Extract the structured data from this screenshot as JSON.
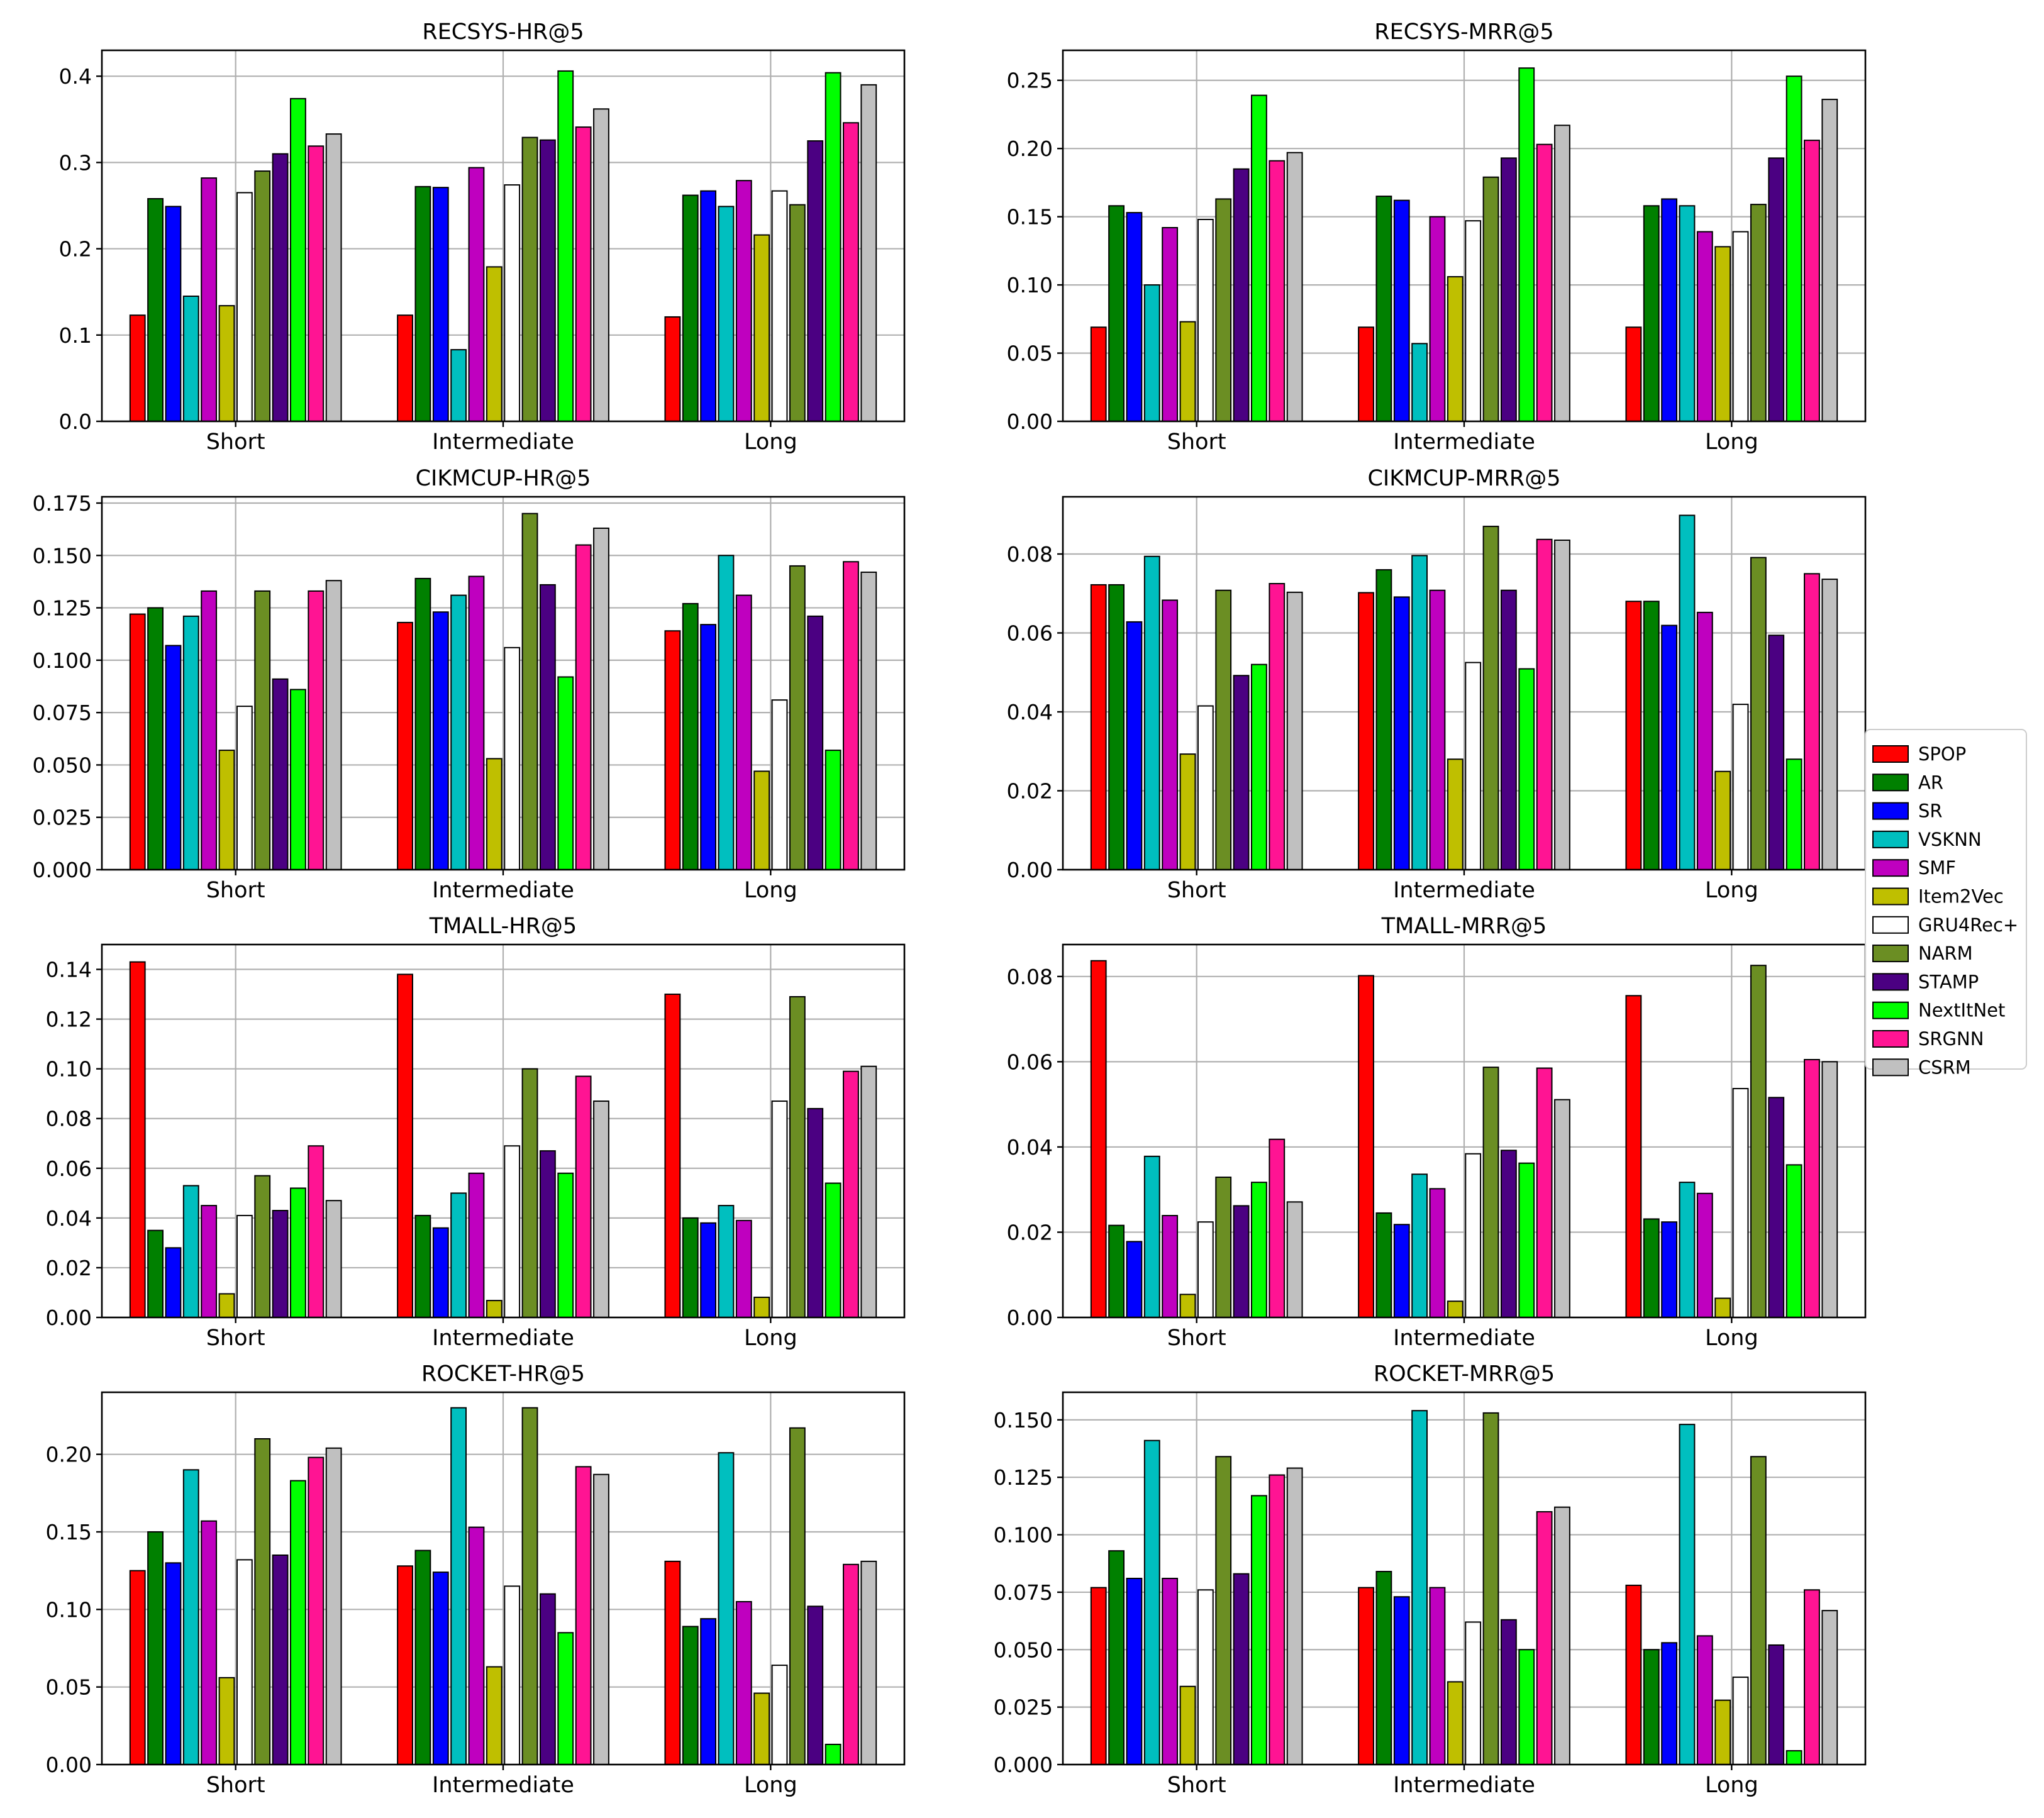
{
  "series": [
    {
      "name": "SPOP",
      "color": "#ff0000"
    },
    {
      "name": "AR",
      "color": "#008000"
    },
    {
      "name": "SR",
      "color": "#0000ff"
    },
    {
      "name": "VSKNN",
      "color": "#00bfbf"
    },
    {
      "name": "SMF",
      "color": "#bf00bf"
    },
    {
      "name": "Item2Vec",
      "color": "#bfbf00"
    },
    {
      "name": "GRU4Rec+",
      "color": "#ffffff"
    },
    {
      "name": "NARM",
      "color": "#6b8e23"
    },
    {
      "name": "STAMP",
      "color": "#4b0082"
    },
    {
      "name": "NextItNet",
      "color": "#00ff00"
    },
    {
      "name": "SRGNN",
      "color": "#ff1493"
    },
    {
      "name": "CSRM",
      "color": "#c0c0c0"
    }
  ],
  "legend": {
    "placement": "center-right",
    "labels": [
      "SPOP",
      "AR",
      "SR",
      "VSKNN",
      "SMF",
      "Item2Vec",
      "GRU4Rec+",
      "NARM",
      "STAMP",
      "NextItNet",
      "SRGNN",
      "CSRM"
    ]
  },
  "chart_data": [
    {
      "type": "bar",
      "title": "RECSYS-HR@5",
      "xlabel": "",
      "ylabel": "",
      "grid": true,
      "categories": [
        "Short",
        "Intermediate",
        "Long"
      ],
      "ylim": [
        0,
        0.43
      ],
      "yticks": [
        0.0,
        0.1,
        0.2,
        0.3,
        0.4
      ],
      "ytick_labels": [
        "0.0",
        "0.1",
        "0.2",
        "0.3",
        "0.4"
      ],
      "series": [
        {
          "name": "SPOP",
          "values": [
            0.123,
            0.123,
            0.121
          ]
        },
        {
          "name": "AR",
          "values": [
            0.258,
            0.272,
            0.262
          ]
        },
        {
          "name": "SR",
          "values": [
            0.249,
            0.271,
            0.267
          ]
        },
        {
          "name": "VSKNN",
          "values": [
            0.145,
            0.083,
            0.249
          ]
        },
        {
          "name": "SMF",
          "values": [
            0.282,
            0.294,
            0.279
          ]
        },
        {
          "name": "Item2Vec",
          "values": [
            0.134,
            0.179,
            0.216
          ]
        },
        {
          "name": "GRU4Rec+",
          "values": [
            0.265,
            0.274,
            0.267
          ]
        },
        {
          "name": "NARM",
          "values": [
            0.29,
            0.329,
            0.251
          ]
        },
        {
          "name": "STAMP",
          "values": [
            0.31,
            0.326,
            0.325
          ]
        },
        {
          "name": "NextItNet",
          "values": [
            0.374,
            0.406,
            0.404
          ]
        },
        {
          "name": "SRGNN",
          "values": [
            0.319,
            0.341,
            0.346
          ]
        },
        {
          "name": "CSRM",
          "values": [
            0.333,
            0.362,
            0.39
          ]
        }
      ]
    },
    {
      "type": "bar",
      "title": "RECSYS-MRR@5",
      "xlabel": "",
      "ylabel": "",
      "grid": true,
      "categories": [
        "Short",
        "Intermediate",
        "Long"
      ],
      "ylim": [
        0,
        0.272
      ],
      "yticks": [
        0.0,
        0.05,
        0.1,
        0.15,
        0.2,
        0.25
      ],
      "ytick_labels": [
        "0.00",
        "0.05",
        "0.10",
        "0.15",
        "0.20",
        "0.25"
      ],
      "series": [
        {
          "name": "SPOP",
          "values": [
            0.069,
            0.069,
            0.069
          ]
        },
        {
          "name": "AR",
          "values": [
            0.158,
            0.165,
            0.158
          ]
        },
        {
          "name": "SR",
          "values": [
            0.153,
            0.162,
            0.163
          ]
        },
        {
          "name": "VSKNN",
          "values": [
            0.1,
            0.057,
            0.158
          ]
        },
        {
          "name": "SMF",
          "values": [
            0.142,
            0.15,
            0.139
          ]
        },
        {
          "name": "Item2Vec",
          "values": [
            0.073,
            0.106,
            0.128
          ]
        },
        {
          "name": "GRU4Rec+",
          "values": [
            0.148,
            0.147,
            0.139
          ]
        },
        {
          "name": "NARM",
          "values": [
            0.163,
            0.179,
            0.159
          ]
        },
        {
          "name": "STAMP",
          "values": [
            0.185,
            0.193,
            0.193
          ]
        },
        {
          "name": "NextItNet",
          "values": [
            0.239,
            0.259,
            0.253
          ]
        },
        {
          "name": "SRGNN",
          "values": [
            0.191,
            0.203,
            0.206
          ]
        },
        {
          "name": "CSRM",
          "values": [
            0.197,
            0.217,
            0.236
          ]
        }
      ]
    },
    {
      "type": "bar",
      "title": "CIKMCUP-HR@5",
      "xlabel": "",
      "ylabel": "",
      "grid": true,
      "categories": [
        "Short",
        "Intermediate",
        "Long"
      ],
      "ylim": [
        0,
        0.178
      ],
      "yticks": [
        0.0,
        0.025,
        0.05,
        0.075,
        0.1,
        0.125,
        0.15,
        0.175
      ],
      "ytick_labels": [
        "0.000",
        "0.025",
        "0.050",
        "0.075",
        "0.100",
        "0.125",
        "0.150",
        "0.175"
      ],
      "series": [
        {
          "name": "SPOP",
          "values": [
            0.122,
            0.118,
            0.114
          ]
        },
        {
          "name": "AR",
          "values": [
            0.125,
            0.139,
            0.127
          ]
        },
        {
          "name": "SR",
          "values": [
            0.107,
            0.123,
            0.117
          ]
        },
        {
          "name": "VSKNN",
          "values": [
            0.121,
            0.131,
            0.15
          ]
        },
        {
          "name": "SMF",
          "values": [
            0.133,
            0.14,
            0.131
          ]
        },
        {
          "name": "Item2Vec",
          "values": [
            0.057,
            0.053,
            0.047
          ]
        },
        {
          "name": "GRU4Rec+",
          "values": [
            0.078,
            0.106,
            0.081
          ]
        },
        {
          "name": "NARM",
          "values": [
            0.133,
            0.17,
            0.145
          ]
        },
        {
          "name": "STAMP",
          "values": [
            0.091,
            0.136,
            0.121
          ]
        },
        {
          "name": "NextItNet",
          "values": [
            0.086,
            0.092,
            0.057
          ]
        },
        {
          "name": "SRGNN",
          "values": [
            0.133,
            0.155,
            0.147
          ]
        },
        {
          "name": "CSRM",
          "values": [
            0.138,
            0.163,
            0.142
          ]
        }
      ]
    },
    {
      "type": "bar",
      "title": "CIKMCUP-MRR@5",
      "xlabel": "",
      "ylabel": "",
      "grid": true,
      "categories": [
        "Short",
        "Intermediate",
        "Long"
      ],
      "ylim": [
        0,
        0.0945
      ],
      "yticks": [
        0.0,
        0.02,
        0.04,
        0.06,
        0.08
      ],
      "ytick_labels": [
        "0.00",
        "0.02",
        "0.04",
        "0.06",
        "0.08"
      ],
      "series": [
        {
          "name": "SPOP",
          "values": [
            0.0722,
            0.0702,
            0.068
          ]
        },
        {
          "name": "AR",
          "values": [
            0.0722,
            0.076,
            0.068
          ]
        },
        {
          "name": "SR",
          "values": [
            0.0628,
            0.0691,
            0.0619
          ]
        },
        {
          "name": "VSKNN",
          "values": [
            0.0794,
            0.0796,
            0.0898
          ]
        },
        {
          "name": "SMF",
          "values": [
            0.0683,
            0.0708,
            0.0652
          ]
        },
        {
          "name": "Item2Vec",
          "values": [
            0.0293,
            0.028,
            0.0249
          ]
        },
        {
          "name": "GRU4Rec+",
          "values": [
            0.0415,
            0.0525,
            0.0419
          ]
        },
        {
          "name": "NARM",
          "values": [
            0.0708,
            0.087,
            0.0791
          ]
        },
        {
          "name": "STAMP",
          "values": [
            0.0492,
            0.0708,
            0.0594
          ]
        },
        {
          "name": "NextItNet",
          "values": [
            0.052,
            0.0509,
            0.028
          ]
        },
        {
          "name": "SRGNN",
          "values": [
            0.0725,
            0.0837,
            0.075
          ]
        },
        {
          "name": "CSRM",
          "values": [
            0.0703,
            0.0835,
            0.0736
          ]
        }
      ]
    },
    {
      "type": "bar",
      "title": "TMALL-HR@5",
      "xlabel": "",
      "ylabel": "",
      "grid": true,
      "categories": [
        "Short",
        "Intermediate",
        "Long"
      ],
      "ylim": [
        0,
        0.15
      ],
      "yticks": [
        0.0,
        0.02,
        0.04,
        0.06,
        0.08,
        0.1,
        0.12,
        0.14
      ],
      "ytick_labels": [
        "0.00",
        "0.02",
        "0.04",
        "0.06",
        "0.08",
        "0.10",
        "0.12",
        "0.14"
      ],
      "series": [
        {
          "name": "SPOP",
          "values": [
            0.143,
            0.138,
            0.13
          ]
        },
        {
          "name": "AR",
          "values": [
            0.035,
            0.041,
            0.04
          ]
        },
        {
          "name": "SR",
          "values": [
            0.028,
            0.036,
            0.038
          ]
        },
        {
          "name": "VSKNN",
          "values": [
            0.053,
            0.05,
            0.045
          ]
        },
        {
          "name": "SMF",
          "values": [
            0.045,
            0.058,
            0.039
          ]
        },
        {
          "name": "Item2Vec",
          "values": [
            0.0095,
            0.0068,
            0.0081
          ]
        },
        {
          "name": "GRU4Rec+",
          "values": [
            0.041,
            0.069,
            0.087
          ]
        },
        {
          "name": "NARM",
          "values": [
            0.057,
            0.1,
            0.129
          ]
        },
        {
          "name": "STAMP",
          "values": [
            0.043,
            0.067,
            0.084
          ]
        },
        {
          "name": "NextItNet",
          "values": [
            0.052,
            0.058,
            0.054
          ]
        },
        {
          "name": "SRGNN",
          "values": [
            0.069,
            0.097,
            0.099
          ]
        },
        {
          "name": "CSRM",
          "values": [
            0.047,
            0.087,
            0.101
          ]
        }
      ]
    },
    {
      "type": "bar",
      "title": "TMALL-MRR@5",
      "xlabel": "",
      "ylabel": "",
      "grid": true,
      "categories": [
        "Short",
        "Intermediate",
        "Long"
      ],
      "ylim": [
        0,
        0.0875
      ],
      "yticks": [
        0.0,
        0.02,
        0.04,
        0.06,
        0.08
      ],
      "ytick_labels": [
        "0.00",
        "0.02",
        "0.04",
        "0.06",
        "0.08"
      ],
      "series": [
        {
          "name": "SPOP",
          "values": [
            0.0837,
            0.0802,
            0.0755
          ]
        },
        {
          "name": "AR",
          "values": [
            0.0216,
            0.0245,
            0.0231
          ]
        },
        {
          "name": "SR",
          "values": [
            0.0178,
            0.0218,
            0.0224
          ]
        },
        {
          "name": "VSKNN",
          "values": [
            0.0378,
            0.0336,
            0.0317
          ]
        },
        {
          "name": "SMF",
          "values": [
            0.0239,
            0.0302,
            0.0291
          ]
        },
        {
          "name": "Item2Vec",
          "values": [
            0.0054,
            0.0038,
            0.0045
          ]
        },
        {
          "name": "GRU4Rec+",
          "values": [
            0.0224,
            0.0384,
            0.0537
          ]
        },
        {
          "name": "NARM",
          "values": [
            0.0329,
            0.0587,
            0.0826
          ]
        },
        {
          "name": "STAMP",
          "values": [
            0.0262,
            0.0392,
            0.0516
          ]
        },
        {
          "name": "NextItNet",
          "values": [
            0.0317,
            0.0362,
            0.0358
          ]
        },
        {
          "name": "SRGNN",
          "values": [
            0.0418,
            0.0585,
            0.0605
          ]
        },
        {
          "name": "CSRM",
          "values": [
            0.0271,
            0.0511,
            0.06
          ]
        }
      ]
    },
    {
      "type": "bar",
      "title": "ROCKET-HR@5",
      "xlabel": "",
      "ylabel": "",
      "grid": true,
      "categories": [
        "Short",
        "Intermediate",
        "Long"
      ],
      "ylim": [
        0,
        0.24
      ],
      "yticks": [
        0.0,
        0.05,
        0.1,
        0.15,
        0.2
      ],
      "ytick_labels": [
        "0.00",
        "0.05",
        "0.10",
        "0.15",
        "0.20"
      ],
      "series": [
        {
          "name": "SPOP",
          "values": [
            0.125,
            0.128,
            0.131
          ]
        },
        {
          "name": "AR",
          "values": [
            0.15,
            0.138,
            0.089
          ]
        },
        {
          "name": "SR",
          "values": [
            0.13,
            0.124,
            0.094
          ]
        },
        {
          "name": "VSKNN",
          "values": [
            0.19,
            0.23,
            0.201
          ]
        },
        {
          "name": "SMF",
          "values": [
            0.157,
            0.153,
            0.105
          ]
        },
        {
          "name": "Item2Vec",
          "values": [
            0.056,
            0.063,
            0.046
          ]
        },
        {
          "name": "GRU4Rec+",
          "values": [
            0.132,
            0.115,
            0.064
          ]
        },
        {
          "name": "NARM",
          "values": [
            0.21,
            0.23,
            0.217
          ]
        },
        {
          "name": "STAMP",
          "values": [
            0.135,
            0.11,
            0.102
          ]
        },
        {
          "name": "NextItNet",
          "values": [
            0.183,
            0.085,
            0.013
          ]
        },
        {
          "name": "SRGNN",
          "values": [
            0.198,
            0.192,
            0.129
          ]
        },
        {
          "name": "CSRM",
          "values": [
            0.204,
            0.187,
            0.131
          ]
        }
      ]
    },
    {
      "type": "bar",
      "title": "ROCKET-MRR@5",
      "xlabel": "",
      "ylabel": "",
      "grid": true,
      "categories": [
        "Short",
        "Intermediate",
        "Long"
      ],
      "ylim": [
        0,
        0.162
      ],
      "yticks": [
        0.0,
        0.025,
        0.05,
        0.075,
        0.1,
        0.125,
        0.15
      ],
      "ytick_labels": [
        "0.000",
        "0.025",
        "0.050",
        "0.075",
        "0.100",
        "0.125",
        "0.150"
      ],
      "series": [
        {
          "name": "SPOP",
          "values": [
            0.077,
            0.077,
            0.078
          ]
        },
        {
          "name": "AR",
          "values": [
            0.093,
            0.084,
            0.05
          ]
        },
        {
          "name": "SR",
          "values": [
            0.081,
            0.073,
            0.053
          ]
        },
        {
          "name": "VSKNN",
          "values": [
            0.141,
            0.154,
            0.148
          ]
        },
        {
          "name": "SMF",
          "values": [
            0.081,
            0.077,
            0.056
          ]
        },
        {
          "name": "Item2Vec",
          "values": [
            0.034,
            0.036,
            0.028
          ]
        },
        {
          "name": "GRU4Rec+",
          "values": [
            0.076,
            0.062,
            0.038
          ]
        },
        {
          "name": "NARM",
          "values": [
            0.134,
            0.153,
            0.134
          ]
        },
        {
          "name": "STAMP",
          "values": [
            0.083,
            0.063,
            0.052
          ]
        },
        {
          "name": "NextItNet",
          "values": [
            0.117,
            0.05,
            0.006
          ]
        },
        {
          "name": "SRGNN",
          "values": [
            0.126,
            0.11,
            0.076
          ]
        },
        {
          "name": "CSRM",
          "values": [
            0.129,
            0.112,
            0.067
          ]
        }
      ]
    }
  ]
}
